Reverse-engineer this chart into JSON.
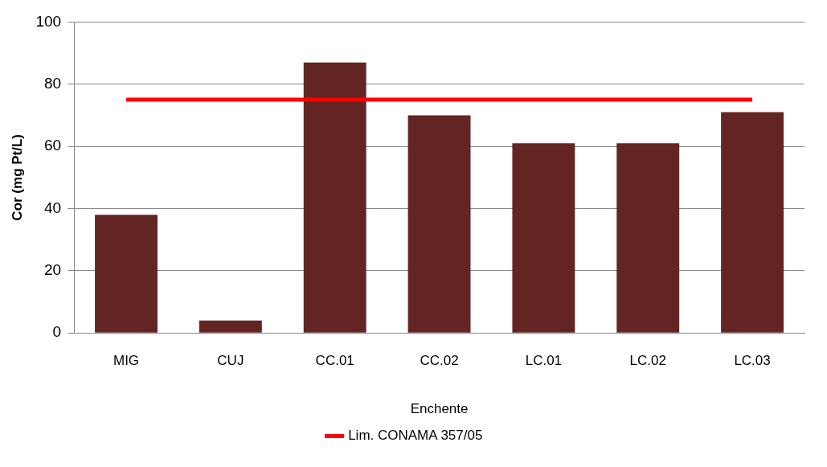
{
  "chart_data": {
    "type": "bar",
    "xlabel": "Enchente",
    "ylabel": "Cor (mg Pt/L)",
    "categories": [
      "MIG",
      "CUJ",
      "CC.01",
      "CC.02",
      "LC.01",
      "LC.02",
      "LC.03"
    ],
    "series": [
      {
        "color": "#632523",
        "values": [
          38,
          4,
          87,
          70,
          61,
          61,
          71
        ]
      },
      {
        "type": "line",
        "name": "Lim. CONAMA 357/05",
        "color": "#ff0000",
        "values": [
          75,
          75,
          75,
          75,
          75,
          75,
          75
        ]
      }
    ],
    "ylim": [
      0,
      100
    ],
    "yticks": [
      0,
      20,
      40,
      60,
      80,
      100
    ],
    "grid": "y",
    "legend": "bottom",
    "marker": "none"
  }
}
